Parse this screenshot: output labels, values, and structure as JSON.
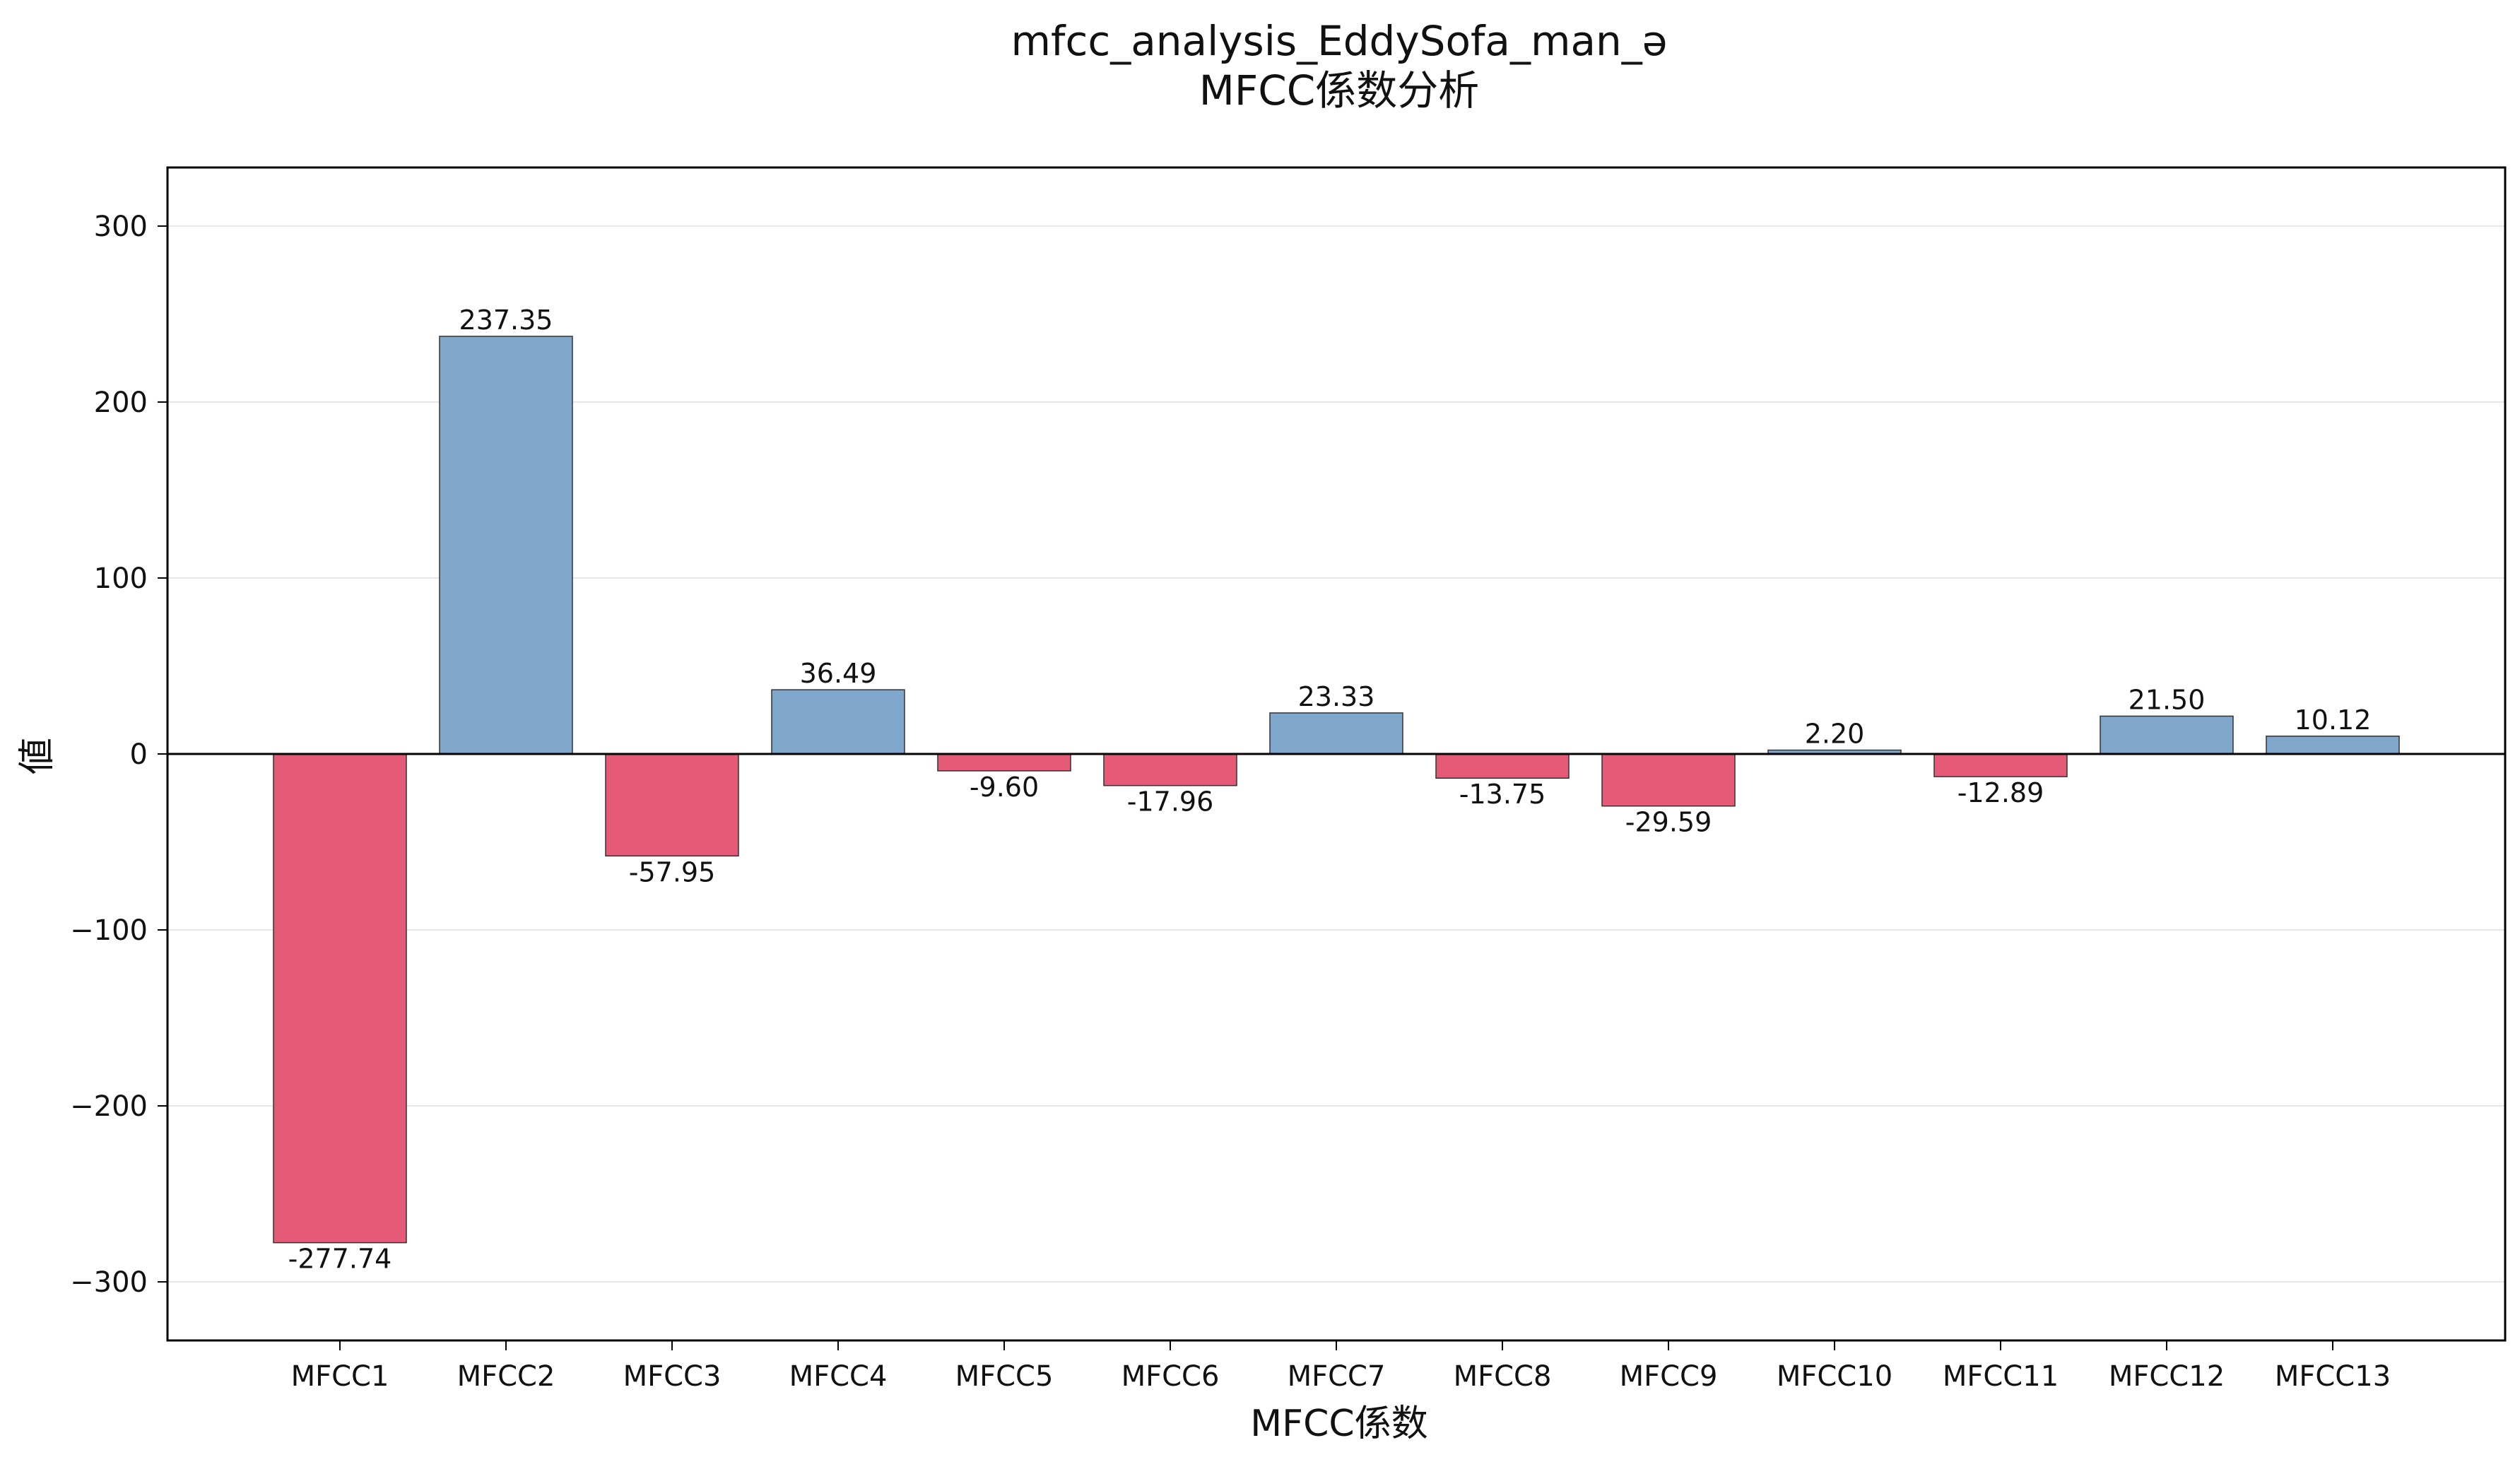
{
  "chart_data": {
    "type": "bar",
    "title": "mfcc_analysis_EddySofa_man_ə",
    "subtitle": "MFCC係数分析",
    "xlabel": "MFCC係数",
    "ylabel": "値",
    "categories": [
      "MFCC1",
      "MFCC2",
      "MFCC3",
      "MFCC4",
      "MFCC5",
      "MFCC6",
      "MFCC7",
      "MFCC8",
      "MFCC9",
      "MFCC10",
      "MFCC11",
      "MFCC12",
      "MFCC13"
    ],
    "values": [
      -277.74,
      237.35,
      -57.95,
      36.49,
      -9.6,
      -17.96,
      23.33,
      -13.75,
      -29.59,
      2.2,
      -12.89,
      21.5,
      10.12
    ],
    "value_labels": [
      "-277.74",
      "237.35",
      "-57.95",
      "36.49",
      "-9.60",
      "-17.96",
      "23.33",
      "-13.75",
      "-29.59",
      "2.20",
      "-12.89",
      "21.50",
      "10.12"
    ],
    "ylim": [
      -333.3,
      333.3
    ],
    "yticks": [
      300,
      200,
      100,
      0,
      -100,
      -200,
      -300
    ],
    "ytick_labels": [
      "300",
      "200",
      "100",
      "0",
      "−100",
      "−200",
      "−300"
    ],
    "grid": true,
    "colors": {
      "positive": "#7ea7cb",
      "negative": "#e55a77",
      "edge": "#333333",
      "grid": "#e6e6e6"
    }
  }
}
